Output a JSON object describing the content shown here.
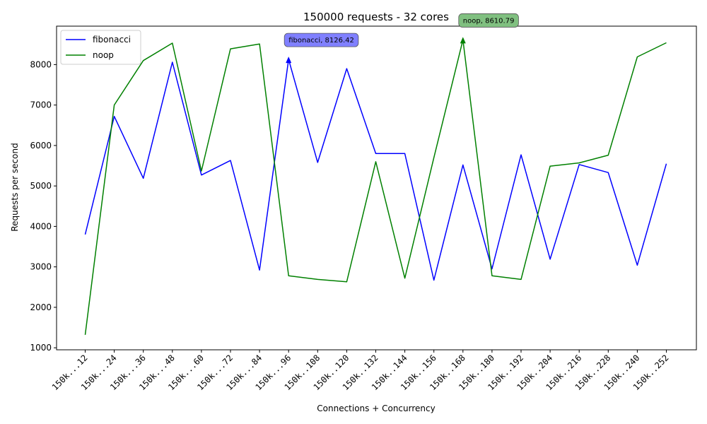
{
  "chart_data": {
    "type": "line",
    "title": "150000 requests - 32 cores",
    "xlabel": "Connections + Concurrency",
    "ylabel": "Requests per second",
    "categories": [
      "150k...12",
      "150k...24",
      "150k...36",
      "150k...48",
      "150k...60",
      "150k...72",
      "150k...84",
      "150k...96",
      "150k..108",
      "150k..120",
      "150k..132",
      "150k..144",
      "150k..156",
      "150k..168",
      "150k..180",
      "150k..192",
      "150k..204",
      "150k..216",
      "150k..228",
      "150k..240",
      "150k..252"
    ],
    "ylim": [
      950,
      8950
    ],
    "yticks": [
      1000,
      2000,
      3000,
      4000,
      5000,
      6000,
      7000,
      8000
    ],
    "grid": false,
    "legend_position": "top-left",
    "series": [
      {
        "name": "fibonacci",
        "color": "#0000ff",
        "values": [
          3800,
          6720,
          5190,
          8060,
          5270,
          5630,
          2920,
          8126.42,
          5580,
          7900,
          5800,
          5800,
          2670,
          5520,
          2950,
          5770,
          3190,
          5530,
          5330,
          3040,
          5550
        ]
      },
      {
        "name": "noop",
        "color": "#008000",
        "values": [
          1320,
          7000,
          8100,
          8530,
          5370,
          8390,
          8510,
          2780,
          2690,
          2630,
          5600,
          2720,
          5700,
          8610.79,
          2780,
          2690,
          5490,
          5570,
          5760,
          8190,
          8540
        ]
      }
    ],
    "annotations": [
      {
        "series": "fibonacci",
        "index": 7,
        "text": "fibonacci, 8126.42",
        "box_color": "#8080ff"
      },
      {
        "series": "noop",
        "index": 13,
        "text": "noop, 8610.79",
        "box_color": "#80c080"
      }
    ]
  }
}
